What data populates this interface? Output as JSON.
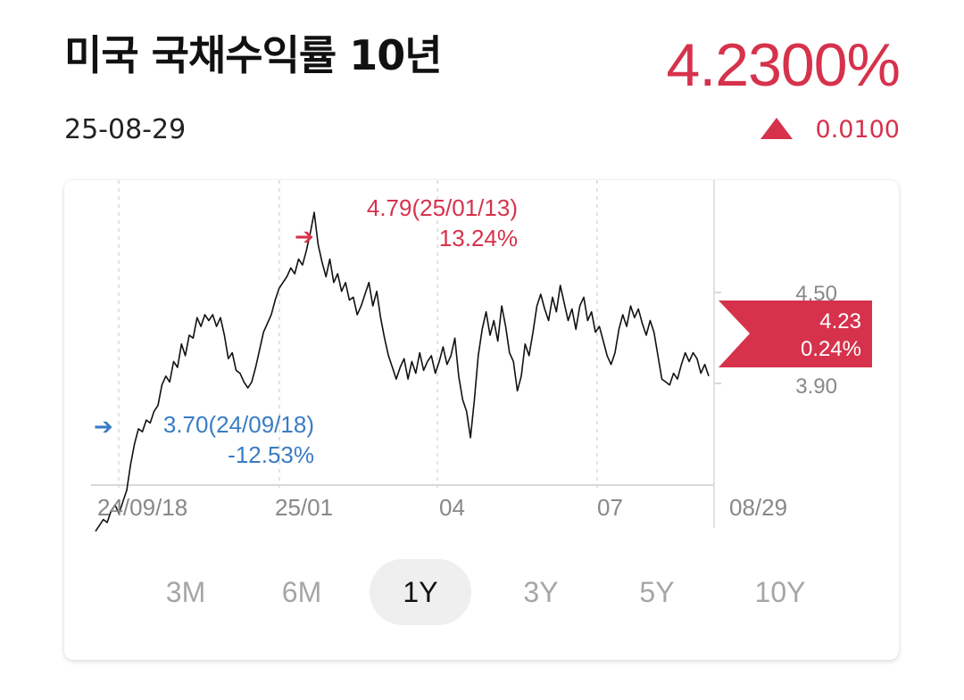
{
  "header": {
    "title": "미국 국채수익률 10년",
    "date": "25-08-29",
    "price": "4.2300%",
    "change": "0.0100",
    "change_direction": "up"
  },
  "colors": {
    "up": "#d6324c",
    "down": "#3a7cc3",
    "line": "#111111",
    "grid": "#d9d9d9",
    "tick": "#888888"
  },
  "periods": {
    "items": [
      "3M",
      "6M",
      "1Y",
      "3Y",
      "5Y",
      "10Y"
    ],
    "active": "1Y"
  },
  "chart_data": {
    "type": "line",
    "xlabel": "",
    "ylabel": "",
    "ylim": [
      3.62,
      4.9
    ],
    "x_tick_labels": [
      "24/09/18",
      "25/01",
      "04",
      "07",
      "08/29"
    ],
    "y_tick_labels": [
      "4.50",
      "3.90"
    ],
    "grid": "vertical-dashed",
    "max_annotation": {
      "text": "4.79(25/01/13)",
      "pct": "13.24%"
    },
    "min_annotation": {
      "text": "3.70(24/09/18)",
      "pct": "-12.53%"
    },
    "last_badge": {
      "value": "4.23",
      "pct": "0.24%"
    },
    "series": [
      {
        "values": [
          3.7,
          3.72,
          3.74,
          3.73,
          3.77,
          3.79,
          3.76,
          3.8,
          3.84,
          3.93,
          4.0,
          4.05,
          4.04,
          4.08,
          4.07,
          4.11,
          4.13,
          4.2,
          4.23,
          4.21,
          4.28,
          4.26,
          4.34,
          4.3,
          4.37,
          4.36,
          4.43,
          4.4,
          4.44,
          4.42,
          4.44,
          4.4,
          4.43,
          4.37,
          4.29,
          4.31,
          4.25,
          4.24,
          4.21,
          4.19,
          4.21,
          4.26,
          4.32,
          4.38,
          4.41,
          4.44,
          4.49,
          4.53,
          4.55,
          4.57,
          4.6,
          4.58,
          4.63,
          4.61,
          4.66,
          4.72,
          4.79,
          4.68,
          4.62,
          4.57,
          4.63,
          4.55,
          4.58,
          4.52,
          4.55,
          4.49,
          4.5,
          4.44,
          4.47,
          4.51,
          4.55,
          4.47,
          4.52,
          4.43,
          4.36,
          4.3,
          4.26,
          4.22,
          4.26,
          4.29,
          4.22,
          4.28,
          4.24,
          4.31,
          4.25,
          4.28,
          4.3,
          4.24,
          4.28,
          4.33,
          4.27,
          4.3,
          4.36,
          4.23,
          4.15,
          4.11,
          4.02,
          4.15,
          4.3,
          4.39,
          4.45,
          4.37,
          4.42,
          4.35,
          4.47,
          4.4,
          4.31,
          4.28,
          4.18,
          4.23,
          4.34,
          4.3,
          4.38,
          4.47,
          4.51,
          4.46,
          4.42,
          4.5,
          4.45,
          4.54,
          4.48,
          4.42,
          4.46,
          4.39,
          4.47,
          4.5,
          4.42,
          4.45,
          4.38,
          4.4,
          4.35,
          4.3,
          4.27,
          4.31,
          4.39,
          4.44,
          4.4,
          4.47,
          4.43,
          4.46,
          4.41,
          4.37,
          4.42,
          4.38,
          4.3,
          4.22,
          4.21,
          4.2,
          4.24,
          4.22,
          4.27,
          4.31,
          4.28,
          4.31,
          4.29,
          4.24,
          4.27,
          4.23
        ]
      }
    ]
  }
}
